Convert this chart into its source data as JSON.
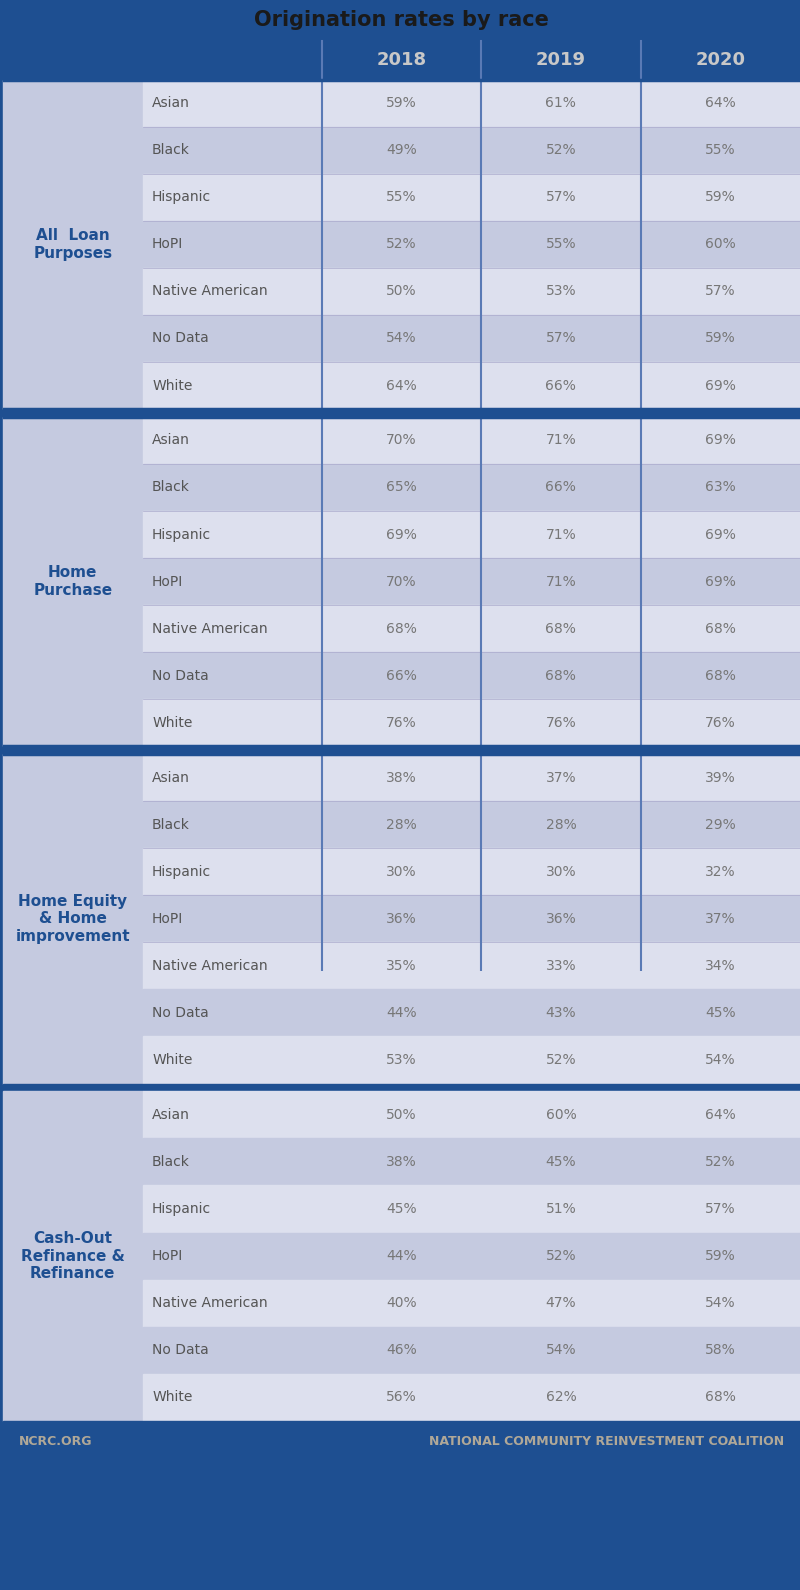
{
  "title": "Origination rates by race",
  "title_bg_color": "#1e4f91",
  "header_bg_color": "#1e4f91",
  "header_text_color": "#c8c8c8",
  "years": [
    "2018",
    "2019",
    "2020"
  ],
  "footer_left": "NCRC.ORG",
  "footer_right": "NATIONAL COMMUNITY REINVESTMENT COALITION",
  "footer_bg_color": "#1e4f91",
  "footer_text_color": "#b0a898",
  "sep_color": "#5a7ab5",
  "border_color": "#1e4f91",
  "row_line_color": "#aaaacc",
  "sections": [
    {
      "label": "All  Loan\nPurposes",
      "label_bg": "#c5cae0",
      "rows": [
        {
          "race": "Asian",
          "values": [
            "59%",
            "61%",
            "64%"
          ],
          "row_bg": "#dde0ee"
        },
        {
          "race": "Black",
          "values": [
            "49%",
            "52%",
            "55%"
          ],
          "row_bg": "#c5cae0"
        },
        {
          "race": "Hispanic",
          "values": [
            "55%",
            "57%",
            "59%"
          ],
          "row_bg": "#dde0ee"
        },
        {
          "race": "HoPI",
          "values": [
            "52%",
            "55%",
            "60%"
          ],
          "row_bg": "#c5cae0"
        },
        {
          "race": "Native American",
          "values": [
            "50%",
            "53%",
            "57%"
          ],
          "row_bg": "#dde0ee"
        },
        {
          "race": "No Data",
          "values": [
            "54%",
            "57%",
            "59%"
          ],
          "row_bg": "#c5cae0"
        },
        {
          "race": "White",
          "values": [
            "64%",
            "66%",
            "69%"
          ],
          "row_bg": "#dde0ee"
        }
      ]
    },
    {
      "label": "Home\nPurchase",
      "label_bg": "#c5cae0",
      "rows": [
        {
          "race": "Asian",
          "values": [
            "70%",
            "71%",
            "69%"
          ],
          "row_bg": "#dde0ee"
        },
        {
          "race": "Black",
          "values": [
            "65%",
            "66%",
            "63%"
          ],
          "row_bg": "#c5cae0"
        },
        {
          "race": "Hispanic",
          "values": [
            "69%",
            "71%",
            "69%"
          ],
          "row_bg": "#dde0ee"
        },
        {
          "race": "HoPI",
          "values": [
            "70%",
            "71%",
            "69%"
          ],
          "row_bg": "#c5cae0"
        },
        {
          "race": "Native American",
          "values": [
            "68%",
            "68%",
            "68%"
          ],
          "row_bg": "#dde0ee"
        },
        {
          "race": "No Data",
          "values": [
            "66%",
            "68%",
            "68%"
          ],
          "row_bg": "#c5cae0"
        },
        {
          "race": "White",
          "values": [
            "76%",
            "76%",
            "76%"
          ],
          "row_bg": "#dde0ee"
        }
      ]
    },
    {
      "label": "Home Equity\n& Home\nimprovement",
      "label_bg": "#c5cae0",
      "rows": [
        {
          "race": "Asian",
          "values": [
            "38%",
            "37%",
            "39%"
          ],
          "row_bg": "#dde0ee"
        },
        {
          "race": "Black",
          "values": [
            "28%",
            "28%",
            "29%"
          ],
          "row_bg": "#c5cae0"
        },
        {
          "race": "Hispanic",
          "values": [
            "30%",
            "30%",
            "32%"
          ],
          "row_bg": "#dde0ee"
        },
        {
          "race": "HoPI",
          "values": [
            "36%",
            "36%",
            "37%"
          ],
          "row_bg": "#c5cae0"
        },
        {
          "race": "Native American",
          "values": [
            "35%",
            "33%",
            "34%"
          ],
          "row_bg": "#dde0ee"
        },
        {
          "race": "No Data",
          "values": [
            "44%",
            "43%",
            "45%"
          ],
          "row_bg": "#c5cae0"
        },
        {
          "race": "White",
          "values": [
            "53%",
            "52%",
            "54%"
          ],
          "row_bg": "#dde0ee"
        }
      ]
    },
    {
      "label": "Cash-Out\nRefinance &\nRefinance",
      "label_bg": "#c5cae0",
      "rows": [
        {
          "race": "Asian",
          "values": [
            "50%",
            "60%",
            "64%"
          ],
          "row_bg": "#dde0ee"
        },
        {
          "race": "Black",
          "values": [
            "38%",
            "45%",
            "52%"
          ],
          "row_bg": "#c5cae0"
        },
        {
          "race": "Hispanic",
          "values": [
            "45%",
            "51%",
            "57%"
          ],
          "row_bg": "#dde0ee"
        },
        {
          "race": "HoPI",
          "values": [
            "44%",
            "52%",
            "59%"
          ],
          "row_bg": "#c5cae0"
        },
        {
          "race": "Native American",
          "values": [
            "40%",
            "47%",
            "54%"
          ],
          "row_bg": "#dde0ee"
        },
        {
          "race": "No Data",
          "values": [
            "46%",
            "54%",
            "58%"
          ],
          "row_bg": "#c5cae0"
        },
        {
          "race": "White",
          "values": [
            "56%",
            "62%",
            "68%"
          ],
          "row_bg": "#dde0ee"
        }
      ]
    }
  ]
}
